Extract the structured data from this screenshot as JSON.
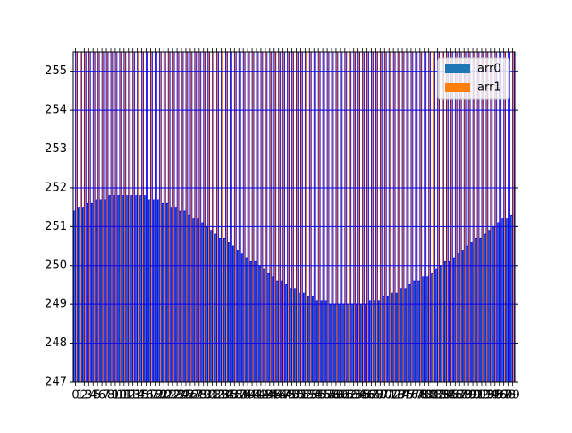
{
  "chart_data": {
    "type": "bar",
    "categories": [
      "0",
      "1",
      "2",
      "3",
      "4",
      "5",
      "6",
      "7",
      "8",
      "9",
      "10",
      "11",
      "12",
      "13",
      "14",
      "15",
      "16",
      "17",
      "18",
      "19",
      "20",
      "21",
      "22",
      "23",
      "24",
      "25",
      "26",
      "27",
      "28",
      "29",
      "30",
      "31",
      "32",
      "33",
      "34",
      "35",
      "36",
      "37",
      "38",
      "39",
      "40",
      "41",
      "42",
      "43",
      "44",
      "45",
      "46",
      "47",
      "48",
      "49",
      "50",
      "51",
      "52",
      "53",
      "54",
      "55",
      "56",
      "57",
      "58",
      "59",
      "60",
      "61",
      "62",
      "63",
      "64",
      "65",
      "66",
      "67",
      "68",
      "69",
      "70",
      "71",
      "72",
      "73",
      "74",
      "75",
      "76",
      "77",
      "78",
      "79",
      "80",
      "81",
      "82",
      "83",
      "84",
      "85",
      "86",
      "87",
      "88",
      "89",
      "90",
      "91",
      "92",
      "93",
      "94",
      "95",
      "96",
      "97",
      "98",
      "99"
    ],
    "series": [
      {
        "name": "arr0",
        "color": "#1f77b4",
        "values": [
          251.4,
          251.5,
          251.5,
          251.6,
          251.6,
          251.7,
          251.7,
          251.7,
          251.8,
          251.8,
          251.8,
          251.8,
          251.8,
          251.8,
          251.8,
          251.8,
          251.8,
          251.7,
          251.7,
          251.7,
          251.6,
          251.6,
          251.5,
          251.5,
          251.4,
          251.4,
          251.3,
          251.2,
          251.2,
          251.1,
          251.0,
          250.9,
          250.8,
          250.7,
          250.7,
          250.6,
          250.5,
          250.4,
          250.3,
          250.2,
          250.1,
          250.1,
          250.0,
          249.9,
          249.8,
          249.7,
          249.6,
          249.6,
          249.5,
          249.4,
          249.4,
          249.3,
          249.3,
          249.2,
          249.2,
          249.1,
          249.1,
          249.1,
          249.0,
          249.0,
          249.0,
          249.0,
          249.0,
          249.0,
          249.0,
          249.0,
          249.0,
          249.1,
          249.1,
          249.1,
          249.2,
          249.2,
          249.3,
          249.3,
          249.4,
          249.4,
          249.5,
          249.6,
          249.6,
          249.7,
          249.7,
          249.8,
          249.9,
          250.0,
          250.1,
          250.1,
          250.2,
          250.3,
          250.4,
          250.5,
          250.6,
          250.7,
          250.7,
          250.8,
          250.9,
          251.0,
          251.1,
          251.2,
          251.2,
          251.3
        ]
      },
      {
        "name": "arr1",
        "color": "#ff7f0e",
        "values": [
          256,
          256,
          256,
          256,
          256,
          256,
          256,
          256,
          256,
          256,
          256,
          256,
          256,
          256,
          256,
          256,
          256,
          256,
          256,
          256,
          256,
          256,
          256,
          256,
          256,
          256,
          256,
          256,
          256,
          256,
          256,
          256,
          256,
          256,
          256,
          256,
          256,
          256,
          256,
          256,
          256,
          256,
          256,
          256,
          256,
          256,
          256,
          256,
          256,
          256,
          256,
          256,
          256,
          256,
          256,
          256,
          256,
          256,
          256,
          256,
          256,
          256,
          256,
          256,
          256,
          256,
          256,
          256,
          256,
          256,
          256,
          256,
          256,
          256,
          256,
          256,
          256,
          256,
          256,
          256,
          256,
          256,
          256,
          256,
          256,
          256,
          256,
          256,
          256,
          256,
          256,
          256,
          256,
          256,
          256,
          256,
          256,
          256,
          256,
          256
        ]
      }
    ],
    "edgecolor": "blue",
    "ylim": [
      247,
      255.5
    ],
    "yticks": [
      247,
      248,
      249,
      250,
      251,
      252,
      253,
      254,
      255
    ],
    "grid": true,
    "grid_color": "blue",
    "legend": "upper right"
  }
}
